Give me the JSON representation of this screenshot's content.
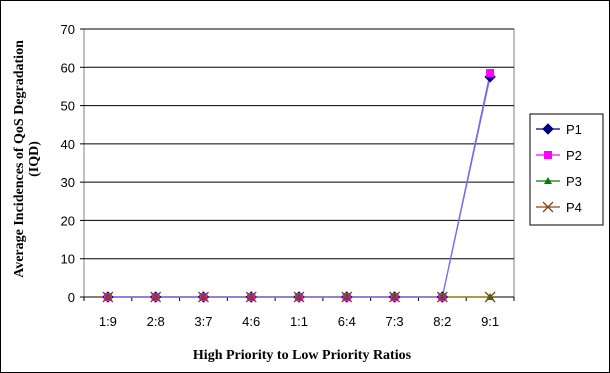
{
  "chart_data": {
    "type": "line",
    "title": "",
    "xlabel": "High Priority to Low Priority Ratios",
    "ylabel": "Average Incidences of QoS Degradation (IQD)",
    "ylabel_lines": [
      "Average Incidences of QoS Degradation",
      "(IQD)"
    ],
    "categories": [
      "1:9",
      "2:8",
      "3:7",
      "4:6",
      "1:1",
      "6:4",
      "7:3",
      "8:2",
      "9:1"
    ],
    "ylim": [
      0,
      70
    ],
    "yticks": [
      0,
      10,
      20,
      30,
      40,
      50,
      60,
      70
    ],
    "grid": "horizontal",
    "legend_position": "right",
    "series": [
      {
        "name": "P1",
        "color": "#000080",
        "marker": "diamond",
        "values": [
          0,
          0,
          0,
          0,
          0,
          0,
          0,
          0,
          57.5
        ]
      },
      {
        "name": "P2",
        "color": "#ff00ff",
        "marker": "square",
        "values": [
          0,
          0,
          0,
          0,
          0,
          0,
          0,
          0,
          58.5
        ]
      },
      {
        "name": "P3",
        "color": "#008000",
        "marker": "triangle",
        "values": [
          0,
          0,
          0,
          0,
          0,
          0,
          0,
          0,
          0
        ]
      },
      {
        "name": "P4",
        "color": "#8b4513",
        "marker": "x",
        "values": [
          0,
          0,
          0,
          0,
          0,
          0,
          0,
          0,
          0
        ]
      }
    ],
    "line_colors": {
      "rising": "#7b68ee",
      "baseline": "#8b7500"
    }
  }
}
